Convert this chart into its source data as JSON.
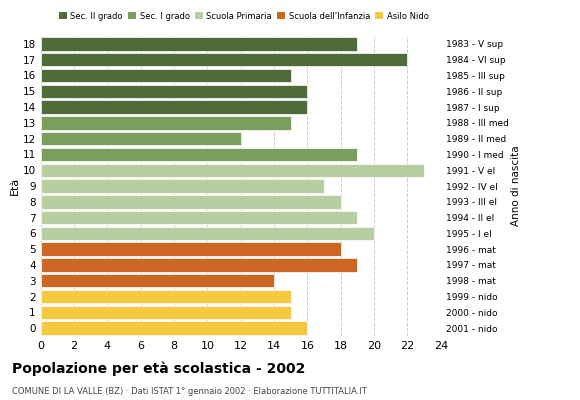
{
  "ages": [
    18,
    17,
    16,
    15,
    14,
    13,
    12,
    11,
    10,
    9,
    8,
    7,
    6,
    5,
    4,
    3,
    2,
    1,
    0
  ],
  "values": [
    19,
    22,
    15,
    16,
    16,
    15,
    12,
    19,
    23,
    17,
    18,
    19,
    20,
    18,
    19,
    14,
    15,
    15,
    16
  ],
  "anno_nascita": [
    "1983 - V sup",
    "1984 - VI sup",
    "1985 - III sup",
    "1986 - II sup",
    "1987 - I sup",
    "1988 - III med",
    "1989 - II med",
    "1990 - I med",
    "1991 - V el",
    "1992 - IV el",
    "1993 - III el",
    "1994 - II el",
    "1995 - I el",
    "1996 - mat",
    "1997 - mat",
    "1998 - mat",
    "1999 - nido",
    "2000 - nido",
    "2001 - nido"
  ],
  "categories": [
    "Sec. II grado",
    "Sec. I grado",
    "Scuola Primaria",
    "Scuola dell'Infanzia",
    "Asilo Nido"
  ],
  "category_colors": [
    "#4e6b3a",
    "#7a9e5e",
    "#b5cfa0",
    "#cc6622",
    "#f5c842"
  ],
  "age_categories": {
    "18": "Sec. II grado",
    "17": "Sec. II grado",
    "16": "Sec. II grado",
    "15": "Sec. II grado",
    "14": "Sec. II grado",
    "13": "Sec. I grado",
    "12": "Sec. I grado",
    "11": "Sec. I grado",
    "10": "Scuola Primaria",
    "9": "Scuola Primaria",
    "8": "Scuola Primaria",
    "7": "Scuola Primaria",
    "6": "Scuola Primaria",
    "5": "Scuola dell'Infanzia",
    "4": "Scuola dell'Infanzia",
    "3": "Scuola dell'Infanzia",
    "2": "Asilo Nido",
    "1": "Asilo Nido",
    "0": "Asilo Nido"
  },
  "title": "Popolazione per età scolastica - 2002",
  "subtitle": "COMUNE DI LA VALLE (BZ) · Dati ISTAT 1° gennaio 2002 · Elaborazione TUTTITALIA.IT",
  "ylabel_left": "Età",
  "ylabel_right": "Anno di nascita",
  "xlim": [
    0,
    24
  ],
  "xticks": [
    0,
    2,
    4,
    6,
    8,
    10,
    12,
    14,
    16,
    18,
    20,
    22,
    24
  ],
  "background_color": "#ffffff",
  "grid_color": "#cccccc"
}
